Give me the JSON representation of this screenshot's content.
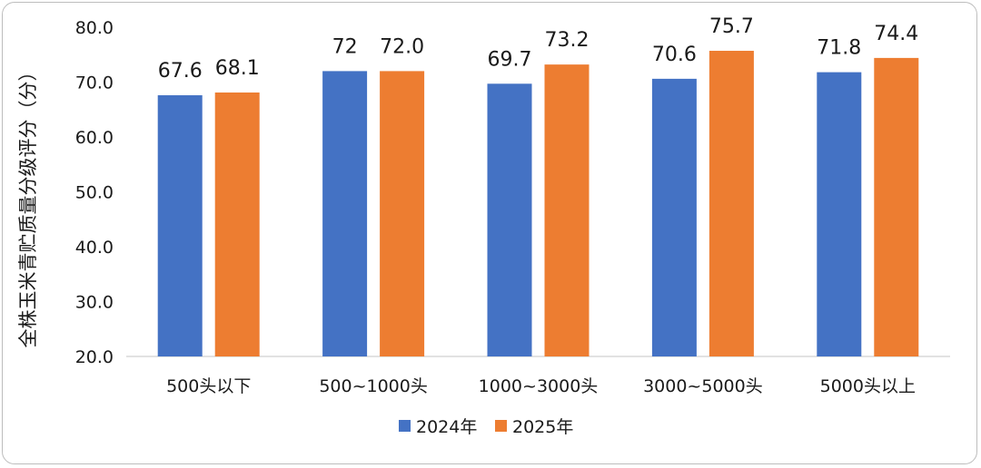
{
  "chart_data": {
    "type": "bar",
    "title": "",
    "xlabel": "",
    "ylabel": "全株玉米青贮质量分级评分（分）",
    "ylim": [
      20,
      80
    ],
    "yticks": [
      "20.0",
      "30.0",
      "40.0",
      "50.0",
      "60.0",
      "70.0",
      "80.0"
    ],
    "categories": [
      "500头以下",
      "500~1000头",
      "1000~3000头",
      "3000~5000头",
      "5000头以上"
    ],
    "series": [
      {
        "name": "2024年",
        "color": "#4472C4",
        "values": [
          67.6,
          72,
          69.7,
          70.6,
          71.8
        ],
        "labels": [
          "67.6",
          "72",
          "69.7",
          "70.6",
          "71.8"
        ]
      },
      {
        "name": "2025年",
        "color": "#ED7D31",
        "values": [
          68.1,
          72.0,
          73.2,
          75.7,
          74.4
        ],
        "labels": [
          "68.1",
          "72.0",
          "73.2",
          "75.7",
          "74.4"
        ]
      }
    ],
    "legend_position": "bottom"
  }
}
